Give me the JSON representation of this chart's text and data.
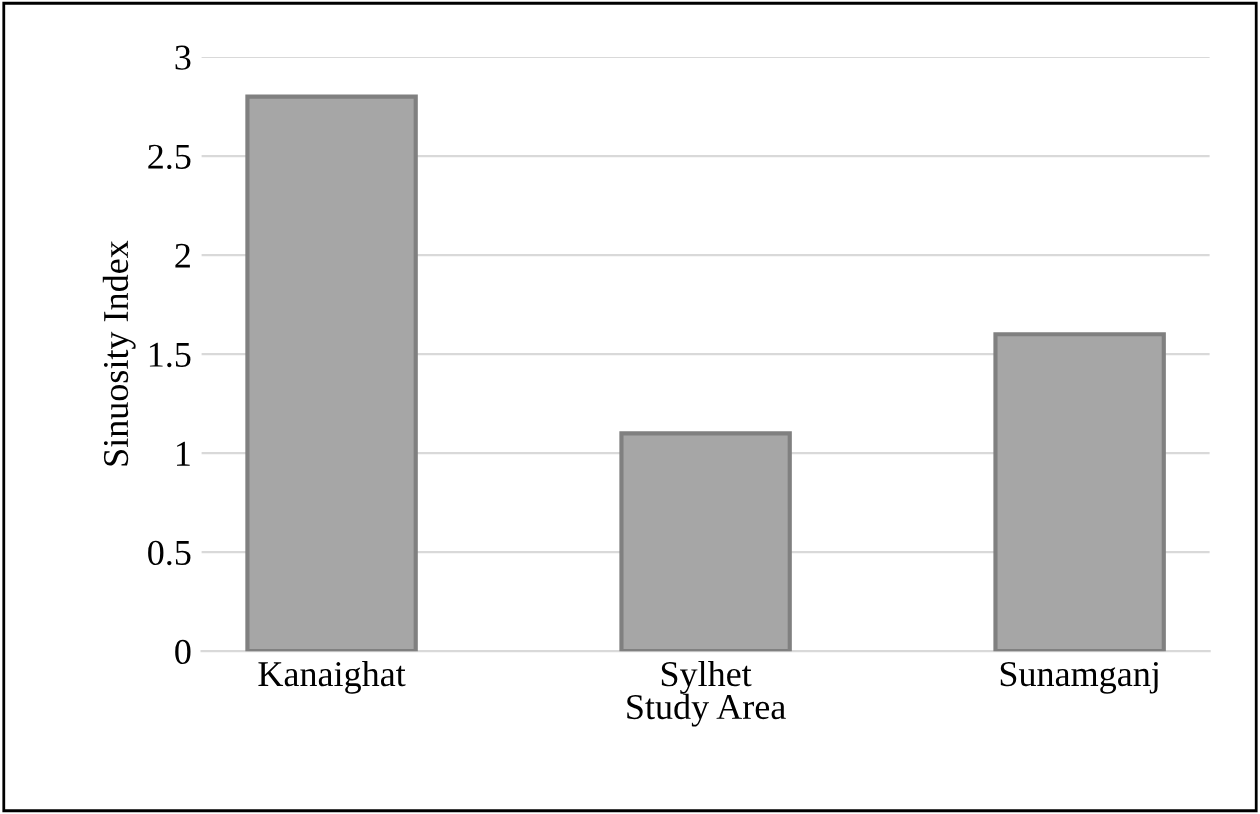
{
  "chart_data": {
    "type": "bar",
    "xlabel": "Study Area",
    "ylabel": "Sinuosity Index",
    "categories": [
      "Kanaighat",
      "Sylhet",
      "Sunamganj"
    ],
    "values": [
      2.8,
      1.1,
      1.6
    ],
    "color": "#a6a6a6",
    "ylim": [
      0,
      3
    ],
    "yticks": [
      0,
      0.5,
      1,
      1.5,
      2,
      2.5,
      3
    ],
    "grid": "y"
  }
}
